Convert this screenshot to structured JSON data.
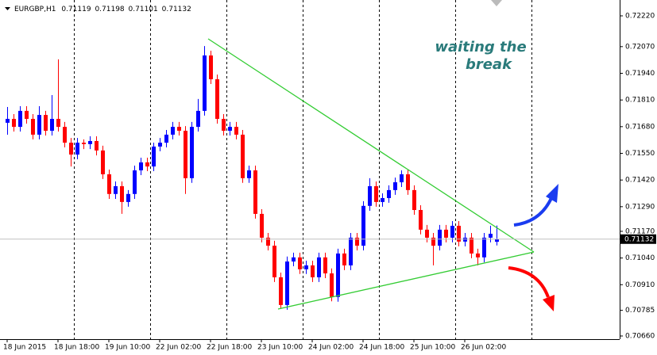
{
  "chart_data": {
    "type": "candlestick",
    "symbol": "EURGBP,H1",
    "annotation": [
      "waiting the",
      "break"
    ],
    "up_color": "#0000ff",
    "down_color": "#ff0000",
    "categories": [
      "18 Jun 2015",
      null,
      null,
      null,
      null,
      null,
      null,
      null,
      "18 Jun 18:00",
      null,
      null,
      null,
      null,
      null,
      null,
      null,
      "19 Jun 10:00",
      null,
      null,
      null,
      null,
      null,
      null,
      null,
      "22 Jun 02:00",
      null,
      null,
      null,
      null,
      null,
      null,
      null,
      "22 Jun 18:00",
      null,
      null,
      null,
      null,
      null,
      null,
      null,
      "23 Jun 10:00",
      null,
      null,
      null,
      null,
      null,
      null,
      null,
      "24 Jun 02:00",
      null,
      null,
      null,
      null,
      null,
      null,
      null,
      "24 Jun 18:00",
      null,
      null,
      null,
      null,
      null,
      null,
      null,
      "25 Jun 10:00",
      null,
      null,
      null,
      null,
      null,
      null,
      null,
      "26 Jun 02:00",
      null,
      null,
      null,
      null,
      null
    ],
    "open": [
      0.71699,
      0.71718,
      0.71679,
      0.71757,
      0.71718,
      0.71641,
      0.71737,
      0.7166,
      0.71718,
      0.71679,
      0.71602,
      0.71544,
      0.71602,
      0.71595,
      0.7161,
      0.71564,
      0.71448,
      0.71352,
      0.7139,
      0.71313,
      0.71352,
      0.71467,
      0.71506,
      0.71486,
      0.71583,
      0.71602,
      0.71641,
      0.71679,
      0.7166,
      0.71429,
      0.71679,
      0.71757,
      0.72027,
      0.71911,
      0.71718,
      0.7166,
      0.71679,
      0.71641,
      0.71429,
      0.71467,
      0.71255,
      0.71139,
      0.711,
      0.70946,
      0.70811,
      0.71023,
      0.71043,
      0.70985,
      0.71004,
      0.70946,
      0.71043,
      0.70965,
      0.7085,
      0.71062,
      0.71004,
      0.71139,
      0.711,
      0.71294,
      0.7139,
      0.71313,
      0.71332,
      0.71371,
      0.71409,
      0.71448,
      0.71371,
      0.71274,
      0.71178,
      0.71139,
      0.711,
      0.71178,
      0.71139,
      0.71197,
      0.7112,
      0.71139,
      0.71062,
      0.71043,
      0.71139,
      0.71119
    ],
    "high": [
      0.71776,
      0.71741,
      0.7178,
      0.7178,
      0.71741,
      0.7178,
      0.71757,
      0.71834,
      0.72008,
      0.71703,
      0.71625,
      0.71625,
      0.71618,
      0.71633,
      0.71633,
      0.71587,
      0.71471,
      0.71413,
      0.71413,
      0.71371,
      0.7149,
      0.71529,
      0.71529,
      0.71602,
      0.71625,
      0.71664,
      0.71703,
      0.71703,
      0.71683,
      0.71703,
      0.71815,
      0.72073,
      0.7205,
      0.71934,
      0.71741,
      0.71703,
      0.71703,
      0.71664,
      0.7149,
      0.7149,
      0.71278,
      0.71162,
      0.71124,
      0.70969,
      0.71047,
      0.71066,
      0.71066,
      0.71027,
      0.71027,
      0.71066,
      0.71066,
      0.70989,
      0.71085,
      0.71085,
      0.71162,
      0.71162,
      0.71317,
      0.71429,
      0.71413,
      0.71355,
      0.71394,
      0.71432,
      0.71467,
      0.71471,
      0.71394,
      0.71297,
      0.71201,
      0.71162,
      0.71201,
      0.71201,
      0.7122,
      0.7122,
      0.71162,
      0.71162,
      0.71085,
      0.71162,
      0.71197,
      0.71198
    ],
    "low": [
      0.71641,
      0.71656,
      0.71656,
      0.71695,
      0.71618,
      0.71618,
      0.71637,
      0.71637,
      0.71656,
      0.71579,
      0.71486,
      0.71521,
      0.71571,
      0.71571,
      0.7154,
      0.71425,
      0.71328,
      0.71328,
      0.71255,
      0.7129,
      0.71328,
      0.71444,
      0.71463,
      0.71463,
      0.7156,
      0.71579,
      0.71618,
      0.71637,
      0.71352,
      0.71406,
      0.71656,
      0.71734,
      0.71888,
      0.71695,
      0.71637,
      0.71637,
      0.71618,
      0.71406,
      0.71406,
      0.71232,
      0.71116,
      0.71077,
      0.70923,
      0.70792,
      0.70788,
      0.71,
      0.70962,
      0.70962,
      0.70923,
      0.70923,
      0.70942,
      0.70829,
      0.70827,
      0.70981,
      0.70981,
      0.71077,
      0.71077,
      0.7127,
      0.7129,
      0.7129,
      0.71309,
      0.71348,
      0.71386,
      0.71348,
      0.71251,
      0.71155,
      0.71116,
      0.71004,
      0.71077,
      0.71116,
      0.71116,
      0.71097,
      0.71097,
      0.71039,
      0.71004,
      0.71019,
      0.71116,
      0.71101
    ],
    "close": [
      0.71718,
      0.71679,
      0.71757,
      0.71718,
      0.71641,
      0.71737,
      0.7166,
      0.71718,
      0.71679,
      0.71602,
      0.71544,
      0.71602,
      0.71595,
      0.7161,
      0.71564,
      0.71448,
      0.71352,
      0.7139,
      0.71313,
      0.71352,
      0.71467,
      0.71506,
      0.71486,
      0.71583,
      0.71602,
      0.71641,
      0.71679,
      0.7166,
      0.71429,
      0.71679,
      0.71757,
      0.72027,
      0.71911,
      0.71718,
      0.7166,
      0.71679,
      0.71641,
      0.71429,
      0.71467,
      0.71255,
      0.71139,
      0.711,
      0.70946,
      0.70811,
      0.71023,
      0.71043,
      0.70985,
      0.71004,
      0.70946,
      0.71043,
      0.70965,
      0.7085,
      0.71062,
      0.71004,
      0.71139,
      0.711,
      0.71294,
      0.7139,
      0.71313,
      0.71332,
      0.71371,
      0.71409,
      0.71448,
      0.71371,
      0.71274,
      0.71178,
      0.71139,
      0.711,
      0.71178,
      0.71139,
      0.71197,
      0.7112,
      0.71139,
      0.71062,
      0.71043,
      0.71139,
      0.71158,
      0.71132
    ],
    "ylim": [
      0.7066,
      0.7222
    ],
    "yticks": [
      {
        "value": 0.7222,
        "label": "0.72220"
      },
      {
        "value": 0.7207,
        "label": "0.72070"
      },
      {
        "value": 0.7194,
        "label": "0.71940"
      },
      {
        "value": 0.7181,
        "label": "0.71810"
      },
      {
        "value": 0.7168,
        "label": "0.71680"
      },
      {
        "value": 0.7155,
        "label": "0.71550"
      },
      {
        "value": 0.7142,
        "label": "0.71420"
      },
      {
        "value": 0.7129,
        "label": "0.71290"
      },
      {
        "value": 0.7117,
        "label": "0.71170"
      },
      {
        "value": 0.7104,
        "label": "0.71040"
      },
      {
        "value": 0.7091,
        "label": "0.70910"
      },
      {
        "value": 0.70785,
        "label": "0.70785"
      },
      {
        "value": 0.7066,
        "label": "0.70660"
      }
    ]
  }
}
